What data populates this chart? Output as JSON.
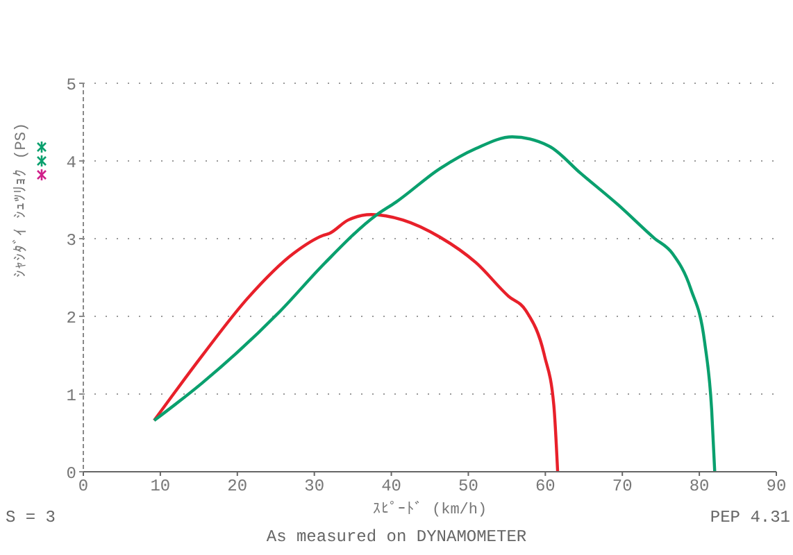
{
  "chart_data": {
    "type": "line",
    "xlabel": "ｽﾋﾟｰﾄﾞ (km/h)",
    "ylabel": "ｼｬｼﾀﾞｲ ｼｭﾂﾘｮｸ (PS)",
    "annotations": [
      "S = 3",
      "PEP 4.31",
      "As measured on DYNAMOMETER"
    ],
    "xlim": [
      0,
      90
    ],
    "xticks": [
      0,
      10,
      20,
      30,
      40,
      50,
      60,
      70,
      80,
      90
    ],
    "ylim": [
      0,
      5
    ],
    "yticks": [
      0,
      1,
      2,
      3,
      4,
      5
    ],
    "grid": "y",
    "marker": "none",
    "line_style": "solid",
    "series": [
      {
        "color": "#e8202a",
        "x": [
          9.2,
          15.4,
          21.4,
          27.3,
          31.1,
          32.0,
          34.4,
          37.4,
          41.5,
          46.3,
          51.0,
          55.2,
          57.5,
          59.9,
          61.1,
          61.6
        ],
        "values": [
          0.66,
          1.49,
          2.24,
          2.81,
          3.04,
          3.07,
          3.24,
          3.31,
          3.24,
          3.02,
          2.69,
          2.26,
          2.07,
          1.49,
          0.86,
          0
        ]
      },
      {
        "color": "#0aa06e",
        "x": [
          9.2,
          15.4,
          25.5,
          31.4,
          38.0,
          40.6,
          46.3,
          51.0,
          55.7,
          60.5,
          64.6,
          69.4,
          74.1,
          76.5,
          78.9,
          80.7,
          81.6,
          82.0
        ],
        "values": [
          0.66,
          1.14,
          2.06,
          2.69,
          3.3,
          3.47,
          3.9,
          4.16,
          4.31,
          4.19,
          3.84,
          3.44,
          3.01,
          2.81,
          2.35,
          1.66,
          0.8,
          0
        ]
      }
    ]
  }
}
